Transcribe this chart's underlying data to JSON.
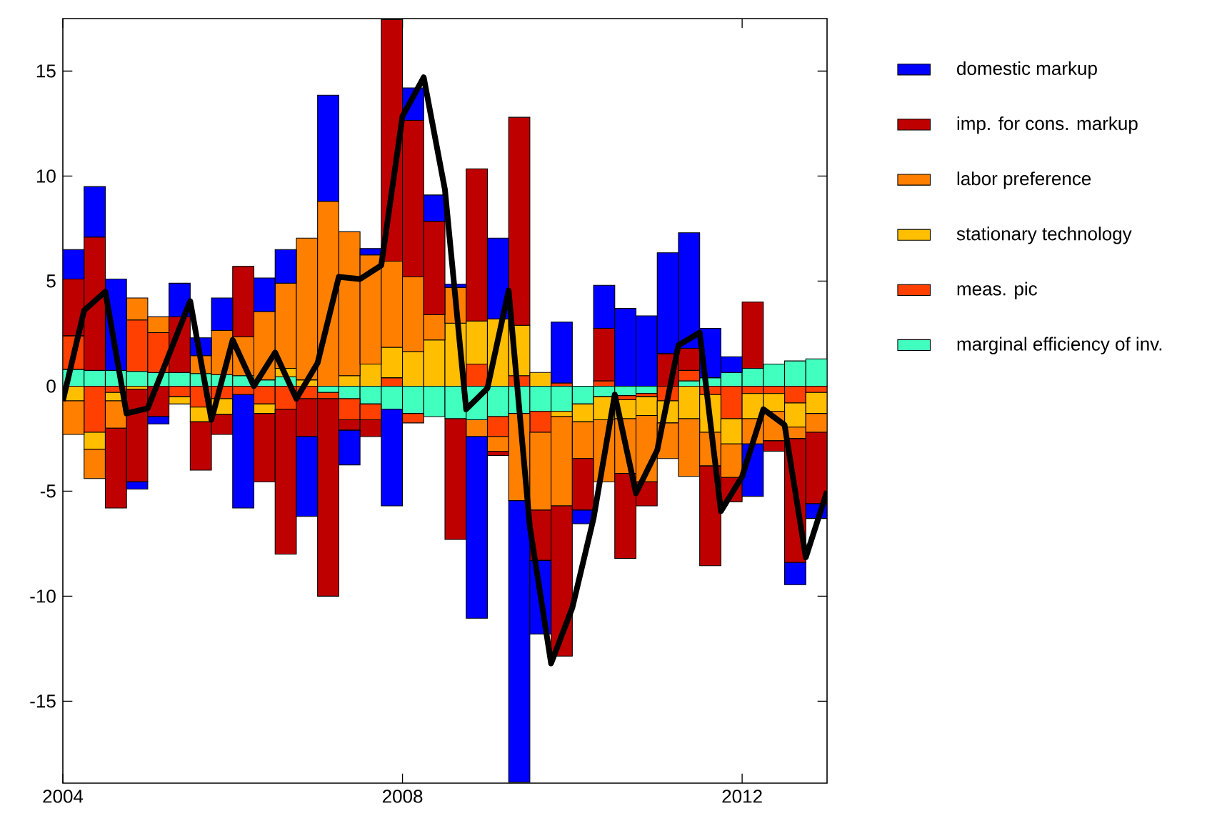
{
  "chart_data": {
    "type": "bar",
    "stacked": true,
    "legend": "right",
    "x": [
      2004.125,
      2004.375,
      2004.625,
      2004.875,
      2005.125,
      2005.375,
      2005.625,
      2005.875,
      2006.125,
      2006.375,
      2006.625,
      2006.875,
      2007.125,
      2007.375,
      2007.625,
      2007.875,
      2008.125,
      2008.375,
      2008.625,
      2008.875,
      2009.125,
      2009.375,
      2009.625,
      2009.875,
      2010.125,
      2010.375,
      2010.625,
      2010.875,
      2011.125,
      2011.375,
      2011.625,
      2011.875,
      2012.125,
      2012.375,
      2012.625,
      2012.875
    ],
    "xlim": [
      2004,
      2013
    ],
    "ylim": [
      -18.9,
      17.5
    ],
    "xticks": [
      2004,
      2008,
      2012
    ],
    "yticks": [
      -15,
      -10,
      -5,
      0,
      5,
      10,
      15
    ],
    "series": [
      {
        "name": "marginal efficiency of inv.",
        "color": "#40ffbf",
        "values": [
          0.8,
          0.75,
          0.75,
          0.7,
          0.65,
          0.65,
          0.6,
          0.55,
          0.5,
          0.3,
          0.45,
          null,
          -0.3,
          -0.6,
          -0.85,
          -1.1,
          -1.3,
          -1.45,
          -1.55,
          -1.6,
          -1.45,
          -1.3,
          -1.2,
          -1.2,
          -0.85,
          -0.5,
          -0.45,
          -0.35,
          null,
          0.25,
          0.4,
          0.65,
          0.85,
          1.05,
          1.2,
          1.3
        ]
      },
      {
        "name": "meas. pic",
        "color": "#ff4000",
        "values": [
          1.6,
          -2.2,
          -0.3,
          2.45,
          1.9,
          -0.5,
          -1.0,
          -0.6,
          -0.4,
          -0.85,
          -1.1,
          -0.6,
          -0.3,
          -1.0,
          -0.75,
          0.4,
          -0.45,
          null,
          null,
          1.05,
          -0.95,
          0.5,
          -1.0,
          0.15,
          null,
          0.25,
          -0.2,
          -0.15,
          -0.7,
          0.5,
          -0.4,
          -1.55,
          -0.35,
          -0.35,
          -0.8,
          -0.3
        ]
      },
      {
        "name": "stationary technology",
        "color": "#ffbf00",
        "values": [
          -0.7,
          -0.8,
          -0.4,
          -0.15,
          null,
          -0.35,
          -0.7,
          -0.75,
          null,
          -0.45,
          0.4,
          0.3,
          null,
          0.5,
          1.05,
          1.45,
          1.65,
          2.2,
          3.0,
          2.05,
          3.2,
          2.4,
          0.65,
          -0.25,
          -0.85,
          -1.1,
          -0.9,
          -0.9,
          -1.05,
          -1.55,
          -1.8,
          -1.2,
          -1.2,
          -0.85,
          -1.15,
          -1.0
        ]
      },
      {
        "name": "labor preference",
        "color": "#ff8000",
        "values": [
          -1.6,
          -1.4,
          -1.3,
          1.05,
          0.75,
          null,
          0.85,
          2.1,
          1.85,
          3.25,
          4.05,
          6.75,
          8.8,
          6.85,
          5.2,
          4.1,
          3.55,
          1.2,
          1.7,
          -0.8,
          -0.7,
          -4.15,
          -3.7,
          -4.25,
          -1.75,
          -2.95,
          -2.6,
          -3.15,
          -1.7,
          -2.75,
          -1.6,
          -1.6,
          -1.2,
          -1.4,
          -0.55,
          -0.9
        ]
      },
      {
        "name": "imp. for cons. markup",
        "color": "#bf0000",
        "values": [
          2.7,
          6.35,
          -3.8,
          -4.4,
          -1.45,
          2.65,
          -2.3,
          -0.95,
          3.35,
          -3.25,
          -6.9,
          -1.8,
          -9.4,
          -0.5,
          -0.8,
          11.5,
          7.45,
          4.45,
          -5.75,
          7.25,
          -0.2,
          9.9,
          -2.4,
          -7.15,
          -2.45,
          2.5,
          -4.05,
          -1.15,
          1.55,
          1.05,
          -4.75,
          -1.15,
          3.15,
          -0.5,
          -5.9,
          -3.4
        ]
      },
      {
        "name": "domestic markup",
        "color": "#0000ff",
        "values": [
          1.4,
          2.4,
          4.35,
          -0.35,
          -0.35,
          1.6,
          0.85,
          1.55,
          -5.4,
          1.6,
          1.6,
          -3.8,
          5.05,
          -1.65,
          0.3,
          -4.6,
          1.55,
          1.25,
          0.15,
          -8.65,
          3.85,
          -13.4,
          -3.5,
          2.9,
          -0.65,
          2.05,
          3.7,
          3.35,
          4.8,
          5.5,
          2.35,
          0.75,
          -2.5,
          null,
          -1.05,
          -0.7
        ]
      },
      {
        "type": "line",
        "color": "#000000",
        "x": [
          2004,
          2004.25,
          2004.5,
          2004.75,
          2005,
          2005.25,
          2005.5,
          2005.75,
          2006,
          2006.25,
          2006.5,
          2006.75,
          2007,
          2007.25,
          2007.5,
          2007.75,
          2008,
          2008.25,
          2008.5,
          2008.75,
          2009,
          2009.25,
          2009.5,
          2009.75,
          2010,
          2010.25,
          2010.5,
          2010.75,
          2011,
          2011.25,
          2011.5,
          2011.75,
          2012,
          2012.25,
          2012.5,
          2012.75,
          2013
        ],
        "values": [
          -0.7,
          3.6,
          4.5,
          -1.3,
          -1.05,
          1.5,
          4.05,
          -1.6,
          2.2,
          0.0,
          1.6,
          -0.6,
          1.1,
          5.2,
          5.1,
          5.75,
          12.85,
          14.7,
          9.35,
          -1.1,
          -0.1,
          4.55,
          -6.7,
          -13.2,
          -10.55,
          -6.3,
          -0.4,
          -5.1,
          -3.05,
          1.95,
          2.55,
          -5.95,
          -4.3,
          -1.1,
          -1.85,
          -8.15,
          -5.0
        ]
      }
    ]
  }
}
